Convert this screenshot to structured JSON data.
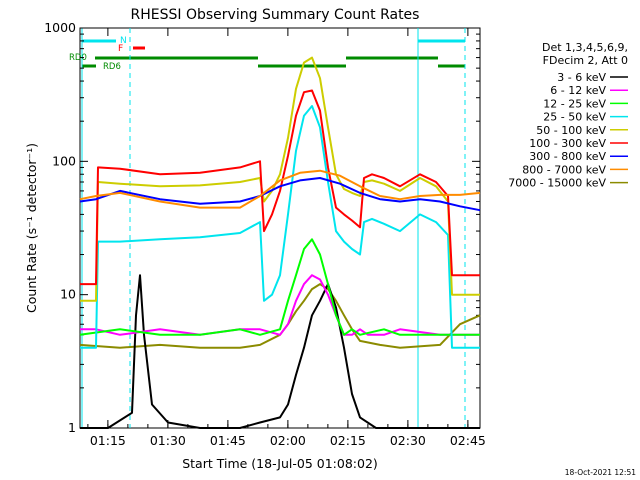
{
  "chart_data": {
    "type": "line",
    "title": "RHESSI Observing Summary Count Rates",
    "xlabel": "Start Time (18-Jul-05 01:08:02)",
    "ylabel": "Count Rate (s⁻¹ detector⁻¹)",
    "yscale": "log",
    "ylim": [
      1,
      1000
    ],
    "xlim_minutes": [
      0,
      100
    ],
    "x_ticks": [
      "01:15",
      "01:30",
      "01:45",
      "02:00",
      "02:15",
      "02:30",
      "02:45"
    ],
    "y_ticks": [
      "1",
      "10",
      "100",
      "1000"
    ],
    "legend_header": [
      "Det 1,3,4,5,6,9,",
      "FDecim 2, Att 0"
    ],
    "legend_position": "right",
    "timestamp": "18-Oct-2021 12:51",
    "flags": [
      {
        "label": "N",
        "color": "#00e5ee"
      },
      {
        "label": "F",
        "color": "#ff0000"
      },
      {
        "label": "RD0",
        "color": "#008b00"
      },
      {
        "label": "RD6",
        "color": "#008b00"
      }
    ],
    "series": [
      {
        "name": "3 - 6 keV",
        "color": "#000000",
        "x": [
          0,
          7,
          13,
          14,
          15,
          16,
          18,
          22,
          30,
          40,
          45,
          50,
          52,
          54,
          56,
          58,
          60,
          62,
          64,
          66,
          68,
          70,
          74,
          80,
          90,
          100
        ],
        "y": [
          1,
          1,
          1.3,
          7,
          14,
          5,
          1.5,
          1.1,
          1,
          1,
          1.1,
          1.2,
          1.5,
          2.5,
          4,
          7,
          9,
          12,
          8,
          4,
          1.8,
          1.2,
          1,
          1,
          1,
          1
        ]
      },
      {
        "name": "6 - 12 keV",
        "color": "#ff00ff",
        "x": [
          0,
          4,
          10,
          20,
          30,
          40,
          45,
          50,
          52,
          54,
          56,
          58,
          60,
          62,
          64,
          66,
          68,
          70,
          72,
          76,
          80,
          90,
          95,
          100
        ],
        "y": [
          5.5,
          5.5,
          5,
          5.5,
          5,
          5.5,
          5.5,
          5,
          6,
          9,
          12,
          14,
          13,
          10,
          7,
          5,
          5,
          5.5,
          5,
          5,
          5.5,
          5,
          5,
          5
        ]
      },
      {
        "name": "12 - 25 keV",
        "color": "#00ff00",
        "x": [
          0,
          10,
          20,
          30,
          40,
          45,
          50,
          52,
          54,
          56,
          58,
          60,
          62,
          64,
          66,
          68,
          70,
          76,
          80,
          90,
          100
        ],
        "y": [
          5,
          5.5,
          5,
          5,
          5.5,
          5,
          5.5,
          9,
          14,
          22,
          26,
          20,
          12,
          7,
          5,
          5.5,
          5,
          5.5,
          5,
          5,
          5
        ]
      },
      {
        "name": "25 - 50 keV",
        "color": "#00e5ee",
        "x": [
          0,
          4,
          4.5,
          10,
          20,
          30,
          40,
          45,
          46,
          48,
          50,
          52,
          54,
          56,
          58,
          60,
          62,
          64,
          66,
          68,
          70,
          71,
          73,
          76,
          80,
          85,
          89,
          92,
          93,
          96,
          100
        ],
        "y": [
          4,
          4,
          25,
          25,
          26,
          27,
          29,
          35,
          9,
          10,
          14,
          40,
          120,
          220,
          260,
          180,
          70,
          30,
          25,
          22,
          20,
          35,
          37,
          34,
          30,
          40,
          35,
          28,
          4,
          4,
          4
        ]
      },
      {
        "name": "50 - 100 keV",
        "color": "#cdcd00",
        "x": [
          0,
          4,
          4.5,
          10,
          20,
          30,
          40,
          45,
          46,
          48,
          50,
          52,
          54,
          56,
          58,
          60,
          62,
          64,
          66,
          68,
          70,
          71,
          73,
          76,
          80,
          85,
          89,
          92,
          93,
          96,
          100
        ],
        "y": [
          9,
          9,
          70,
          68,
          65,
          66,
          70,
          75,
          50,
          60,
          80,
          150,
          350,
          550,
          600,
          420,
          180,
          80,
          62,
          58,
          55,
          70,
          72,
          68,
          60,
          75,
          65,
          50,
          10,
          10,
          10
        ]
      },
      {
        "name": "100 - 300 keV",
        "color": "#ff0000",
        "x": [
          0,
          4,
          4.5,
          10,
          20,
          30,
          40,
          45,
          46,
          48,
          50,
          52,
          54,
          56,
          58,
          60,
          62,
          64,
          66,
          68,
          70,
          71,
          73,
          76,
          80,
          85,
          89,
          92,
          93,
          96,
          100
        ],
        "y": [
          12,
          12,
          90,
          88,
          80,
          82,
          90,
          100,
          30,
          40,
          60,
          110,
          220,
          330,
          340,
          240,
          90,
          45,
          40,
          36,
          32,
          75,
          80,
          75,
          65,
          80,
          70,
          55,
          14,
          14,
          14
        ]
      },
      {
        "name": "300 - 800 keV",
        "color": "#0000ff",
        "x": [
          0,
          4,
          10,
          20,
          30,
          40,
          45,
          50,
          55,
          60,
          65,
          70,
          75,
          80,
          85,
          90,
          95,
          100
        ],
        "y": [
          50,
          52,
          60,
          52,
          48,
          50,
          55,
          65,
          72,
          75,
          68,
          58,
          52,
          50,
          52,
          50,
          46,
          43
        ]
      },
      {
        "name": "800 - 7000 keV",
        "color": "#ff8c00",
        "x": [
          0,
          4,
          10,
          20,
          30,
          40,
          45,
          50,
          55,
          60,
          65,
          70,
          75,
          80,
          85,
          90,
          95,
          100
        ],
        "y": [
          52,
          55,
          58,
          50,
          45,
          45,
          55,
          72,
          82,
          85,
          78,
          65,
          55,
          52,
          55,
          56,
          56,
          58
        ]
      },
      {
        "name": "7000 - 15000 keV",
        "color": "#8b8b00",
        "x": [
          0,
          10,
          20,
          30,
          40,
          45,
          50,
          52,
          54,
          56,
          58,
          60,
          62,
          64,
          66,
          68,
          70,
          75,
          80,
          90,
          95,
          100
        ],
        "y": [
          4.2,
          4,
          4.2,
          4,
          4,
          4.2,
          5,
          6,
          7.5,
          9,
          11,
          12,
          11,
          9,
          7,
          5.5,
          4.5,
          4.2,
          4,
          4.2,
          6,
          7
        ]
      }
    ]
  }
}
